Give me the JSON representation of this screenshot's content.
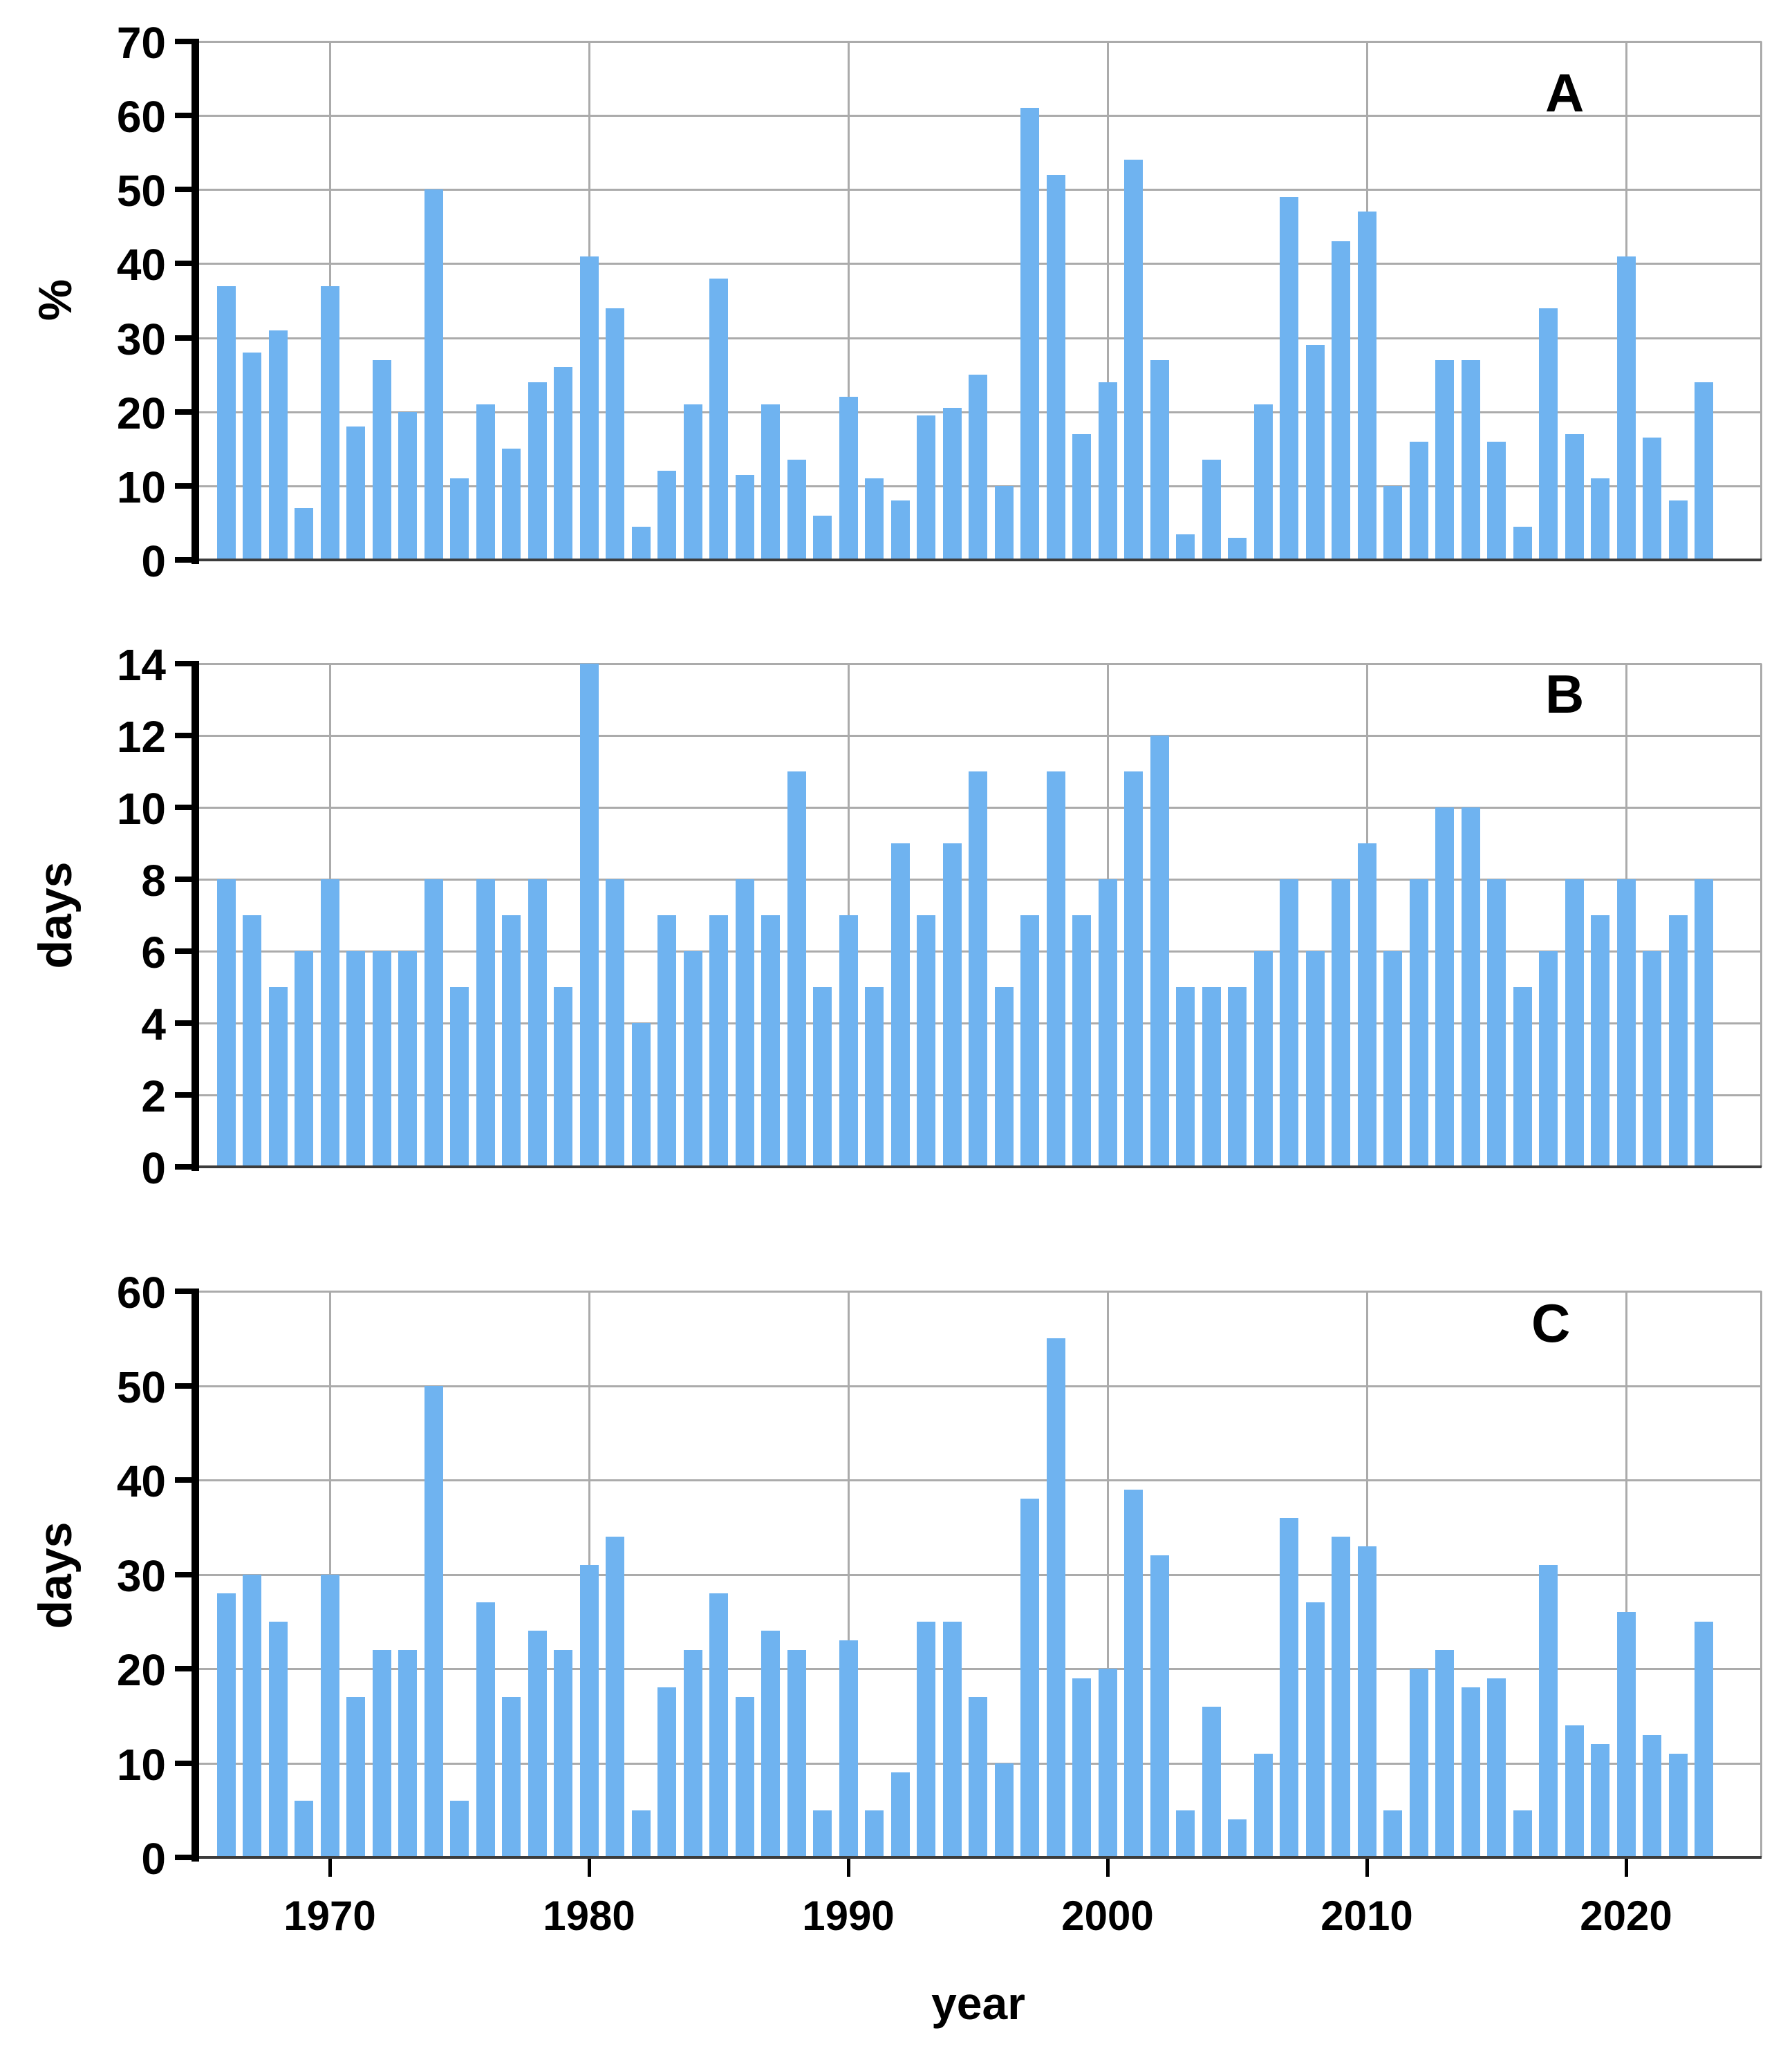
{
  "figure_background": "#ffffff",
  "bar_color": "#6fb3f0",
  "gridline_color": "#ababab",
  "axis_color": "#000000",
  "xlabel": "year",
  "x_tick_labels": [
    "1970",
    "1980",
    "1990",
    "2000",
    "2010",
    "2020"
  ],
  "chart_data": [
    {
      "type": "bar",
      "panel_label": "A",
      "ylabel": "%",
      "ylim": [
        0,
        70
      ],
      "ytick_step": 10,
      "ytick_labels": [
        "0",
        "10",
        "20",
        "30",
        "40",
        "50",
        "60",
        "70"
      ],
      "grid": true,
      "x_start_year": 1966,
      "x_end_year": 2023,
      "values": [
        37,
        28,
        31,
        7,
        37,
        18,
        27,
        20,
        50,
        11,
        21,
        15,
        24,
        26,
        41,
        34,
        4.5,
        12,
        21,
        38,
        11.5,
        21,
        13.5,
        6,
        22,
        11,
        8,
        19.5,
        20.5,
        25,
        10,
        61,
        52,
        17,
        24,
        54,
        27,
        3.5,
        13.5,
        3,
        21,
        49,
        29,
        43,
        47,
        10,
        16,
        27,
        27,
        16,
        4.5,
        34,
        17,
        11,
        41,
        16.5,
        8,
        24
      ]
    },
    {
      "type": "bar",
      "panel_label": "B",
      "ylabel": "days",
      "ylim": [
        0,
        14
      ],
      "ytick_step": 2,
      "ytick_labels": [
        "0",
        "2",
        "4",
        "6",
        "8",
        "10",
        "12",
        "14"
      ],
      "grid": true,
      "x_start_year": 1966,
      "x_end_year": 2023,
      "values": [
        8,
        7,
        5,
        6,
        8,
        6,
        6,
        6,
        8,
        5,
        8,
        7,
        8,
        5,
        14,
        8,
        4,
        7,
        6,
        7,
        8,
        7,
        11,
        5,
        7,
        5,
        9,
        7,
        9,
        11,
        5,
        7,
        11,
        7,
        8,
        11,
        12,
        5,
        5,
        5,
        6,
        8,
        6,
        8,
        9,
        6,
        8,
        10,
        10,
        8,
        5,
        6,
        8,
        7,
        8,
        6,
        7,
        8
      ]
    },
    {
      "type": "bar",
      "panel_label": "C",
      "ylabel": "days",
      "ylim": [
        0,
        60
      ],
      "ytick_step": 10,
      "ytick_labels": [
        "0",
        "10",
        "20",
        "30",
        "40",
        "50",
        "60"
      ],
      "grid": true,
      "x_start_year": 1966,
      "x_end_year": 2023,
      "values": [
        28,
        30,
        25,
        6,
        30,
        17,
        22,
        22,
        50,
        6,
        27,
        17,
        24,
        22,
        31,
        34,
        5,
        18,
        22,
        28,
        17,
        24,
        22,
        5,
        23,
        5,
        9,
        25,
        25,
        17,
        10,
        38,
        55,
        19,
        20,
        39,
        32,
        5,
        16,
        4,
        11,
        36,
        27,
        34,
        33,
        5,
        20,
        22,
        18,
        19,
        5,
        31,
        14,
        12,
        26,
        13,
        11,
        25
      ]
    }
  ]
}
